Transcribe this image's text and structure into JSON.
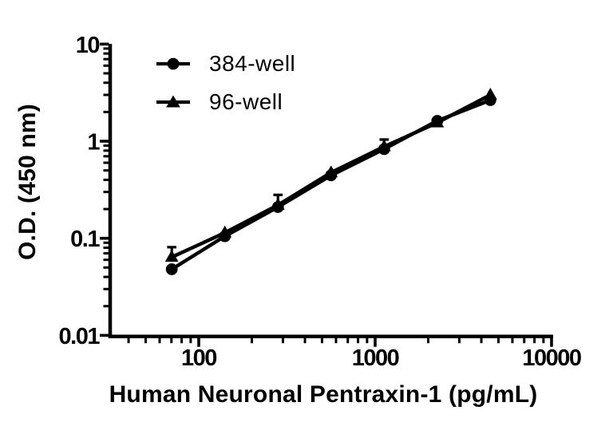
{
  "figure": {
    "background": "#ffffff",
    "ink_color": "#000000"
  },
  "chart_data": {
    "type": "line",
    "title": "",
    "xlabel": "Human Neuronal Pentraxin-1 (pg/mL)",
    "ylabel": "O.D. (450 nm)",
    "x_scale": "log",
    "y_scale": "log",
    "x_range": [
      31.6,
      10000
    ],
    "y_range": [
      0.01,
      10
    ],
    "grid": false,
    "legend_position": "top-left-inside",
    "x": [
      70.3,
      140.6,
      281.3,
      562.5,
      1125,
      2250,
      4500
    ],
    "series": [
      {
        "name": "384-well",
        "marker": "circle",
        "color": "#000000",
        "values": [
          0.048,
          0.105,
          0.21,
          0.445,
          0.83,
          1.62,
          2.65
        ]
      },
      {
        "name": "96-well",
        "marker": "triangle",
        "color": "#000000",
        "values": [
          0.064,
          0.114,
          0.22,
          0.475,
          0.88,
          1.55,
          3.0
        ],
        "err_upper": [
          0.081,
          null,
          0.28,
          null,
          1.04,
          null,
          null
        ]
      }
    ],
    "x_ticks": [
      {
        "value": 100,
        "label": "100"
      },
      {
        "value": 1000,
        "label": "1000"
      },
      {
        "value": 10000,
        "label": "10000"
      }
    ],
    "y_ticks": [
      {
        "value": 10,
        "label": "10"
      },
      {
        "value": 1,
        "label": "1"
      },
      {
        "value": 0.1,
        "label": "0.1"
      },
      {
        "value": 0.01,
        "label": "0.01"
      }
    ]
  }
}
